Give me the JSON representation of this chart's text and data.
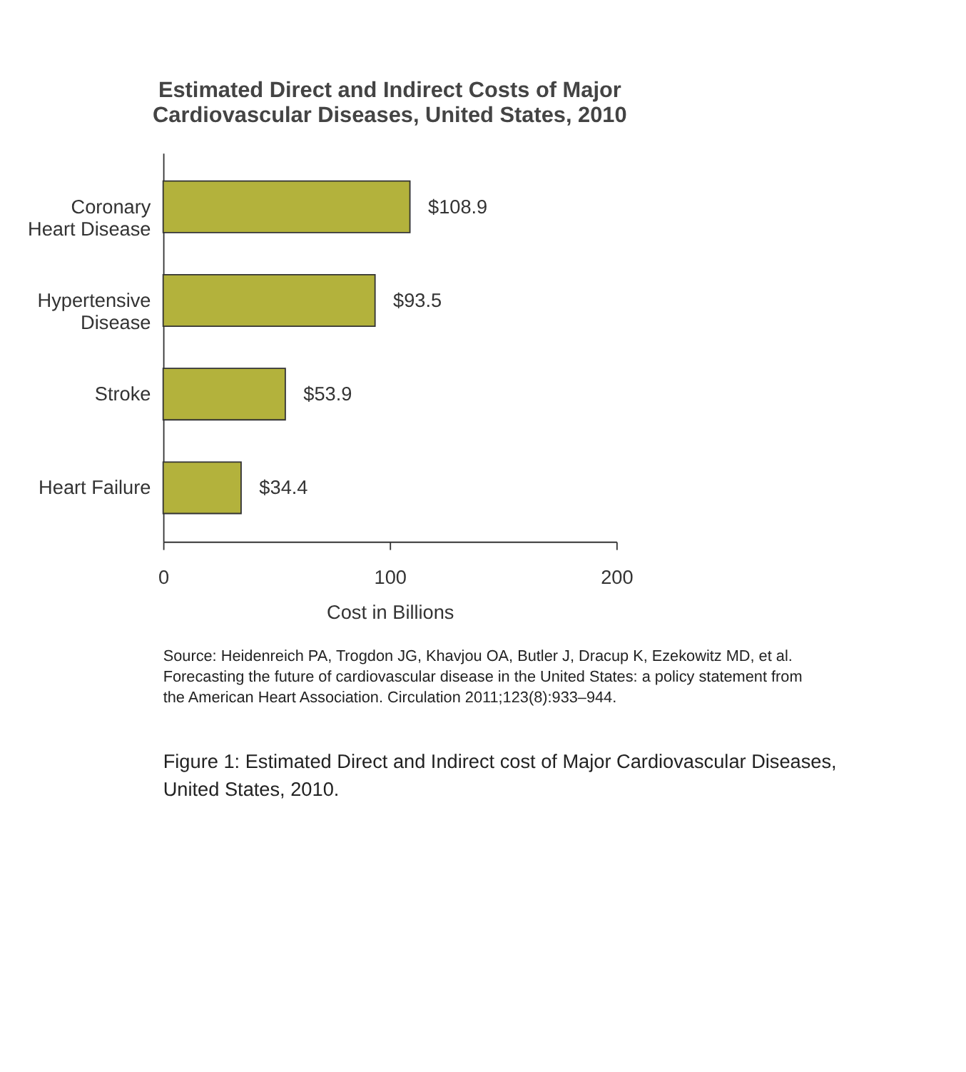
{
  "chart_data": {
    "type": "bar",
    "orientation": "horizontal",
    "title": [
      "Estimated Direct and Indirect Costs of Major",
      "Cardiovascular Diseases, United States, 2010"
    ],
    "categories": [
      "Coronary\nHeart Disease",
      "Hypertensive\nDisease",
      "Stroke",
      "Heart Failure"
    ],
    "values": [
      108.9,
      93.5,
      53.9,
      34.4
    ],
    "value_labels": [
      "$108.9",
      "$93.5",
      "$53.9",
      "$34.4"
    ],
    "color": "#b3b23c",
    "xlim": [
      0,
      200
    ],
    "xticks": [
      0,
      100,
      200
    ],
    "xlabel": "Cost in Billions",
    "grid": false,
    "annotations": [
      "Source: Heidenreich PA, Trogdon JG, Khavjou OA, Butler J, Dracup K, Ezekowitz MD, et al. Forecasting the future of cardiovascular disease in the United States: a policy statement from the American Heart Association. Circulation 2011;123(8):933–944.",
      "Figure 1: Estimated Direct and Indirect cost of Major Cardiovascular Diseases, United States, 2010."
    ]
  }
}
